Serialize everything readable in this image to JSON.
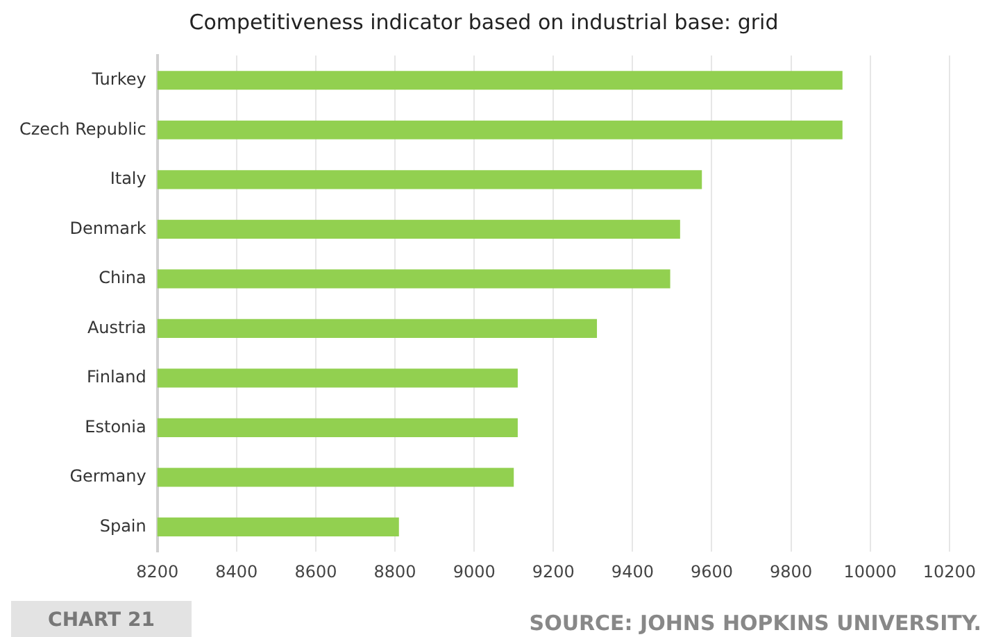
{
  "chart_data": {
    "type": "bar",
    "orientation": "horizontal",
    "title": "Competitiveness indicator based on industrial base: grid",
    "categories": [
      "Turkey",
      "Czech Republic",
      "Italy",
      "Denmark",
      "China",
      "Austria",
      "Finland",
      "Estonia",
      "Germany",
      "Spain"
    ],
    "values": [
      9930,
      9930,
      9575,
      9520,
      9495,
      9310,
      9110,
      9110,
      9100,
      8810
    ],
    "color": "#92d050",
    "xlim": [
      8200,
      10200
    ],
    "xticks": [
      8200,
      8400,
      8600,
      8800,
      9000,
      9200,
      9400,
      9600,
      9800,
      10000,
      10200
    ],
    "grid": "x",
    "legend": false,
    "annotations": [
      "CHART 21",
      "SOURCE: JOHNS HOPKINS UNIVERSITY."
    ]
  }
}
